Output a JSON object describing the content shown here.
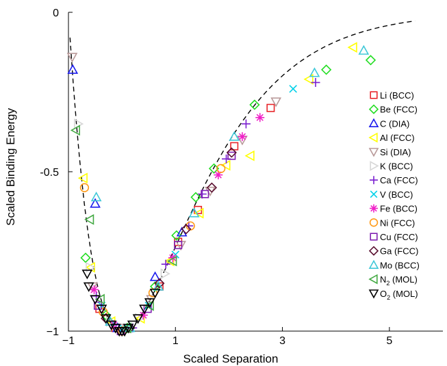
{
  "chart_data": {
    "type": "scatter",
    "xlabel": "Scaled Separation",
    "ylabel": "Scaled Binding Energy",
    "xlim": [
      -1,
      6
    ],
    "ylim": [
      -1,
      0
    ],
    "x_ticks": [
      {
        "value": -1,
        "label": "−1"
      },
      {
        "value": 1,
        "label": "1"
      },
      {
        "value": 3,
        "label": "3"
      },
      {
        "value": 5,
        "label": "5"
      }
    ],
    "y_ticks": [
      {
        "value": 0,
        "label": "0"
      },
      {
        "value": -0.5,
        "label": "-0.5"
      },
      {
        "value": -1,
        "label": "−1"
      }
    ],
    "grid": false,
    "legend_position": "right",
    "curve": {
      "style": "dashed",
      "color": "#000000",
      "description": "universal binding energy relation E = -(1 + a) exp(-a)"
    },
    "series": [
      {
        "name": "Li (BCC)",
        "label": "Li (BCC)",
        "marker": "square",
        "color": "#e8262b",
        "x": [
          -0.42,
          -0.12,
          0.7,
          1.05,
          1.42,
          2.1,
          2.78
        ],
        "y": [
          -0.93,
          -0.99,
          -0.86,
          -0.72,
          -0.62,
          -0.42,
          -0.3
        ]
      },
      {
        "name": "Be (FCC)",
        "label": "Be (FCC)",
        "marker": "diamond",
        "color": "#22dd22",
        "x": [
          -0.68,
          -0.3,
          0.1,
          0.62,
          1.02,
          1.38,
          1.72,
          2.48,
          3.82,
          4.65
        ],
        "y": [
          -0.77,
          -0.95,
          -0.99,
          -0.86,
          -0.7,
          -0.58,
          -0.49,
          -0.29,
          -0.18,
          -0.15
        ]
      },
      {
        "name": "C (DIA)",
        "label": "C (DIA)",
        "marker": "triangle-up",
        "color": "#1a1aee",
        "x": [
          -0.92,
          -0.5,
          -0.08,
          0.62,
          1.12
        ],
        "y": [
          -0.18,
          -0.6,
          -0.99,
          -0.83,
          -0.69
        ]
      },
      {
        "name": "Al (FCC)",
        "label": "Al (FCC)",
        "marker": "triangle-left",
        "color": "#ffff00",
        "x": [
          -0.72,
          -0.58,
          -0.2,
          0.35,
          0.9,
          1.45,
          1.95,
          2.4,
          3.5,
          4.32
        ],
        "y": [
          -0.52,
          -0.8,
          -0.97,
          -0.96,
          -0.78,
          -0.63,
          -0.48,
          -0.45,
          -0.21,
          -0.11
        ]
      },
      {
        "name": "Si (DIA)",
        "label": "Si (DIA)",
        "marker": "triangle-down",
        "color": "#b99a9a",
        "x": [
          -0.93,
          -0.55,
          -0.05,
          0.55,
          1.1,
          1.65,
          2.25,
          2.88
        ],
        "y": [
          -0.14,
          -0.86,
          -0.99,
          -0.9,
          -0.73,
          -0.56,
          -0.4,
          -0.28
        ]
      },
      {
        "name": "K (BCC)",
        "label": "K (BCC)",
        "marker": "triangle-right",
        "color": "#d7d7d7",
        "x": [
          -0.82,
          -0.6,
          -0.22,
          0.32,
          0.8
        ],
        "y": [
          -0.35,
          -0.8,
          -0.97,
          -0.96,
          -0.82
        ]
      },
      {
        "name": "Ca (FCC)",
        "label": "Ca (FCC)",
        "marker": "plus",
        "color": "#7a1fd0",
        "x": [
          -0.48,
          0.2,
          0.82,
          1.25,
          1.5,
          1.95,
          2.32,
          3.62
        ],
        "y": [
          -0.89,
          -0.99,
          -0.79,
          -0.67,
          -0.57,
          -0.46,
          -0.35,
          -0.22
        ]
      },
      {
        "name": "V (BCC)",
        "label": "V (BCC)",
        "marker": "cross",
        "color": "#00d0e8",
        "x": [
          -0.38,
          0.02,
          0.5,
          1.0,
          3.2
        ],
        "y": [
          -0.92,
          -0.99,
          -0.92,
          -0.76,
          -0.24
        ]
      },
      {
        "name": "Fe (BCC)",
        "label": "Fe (BCC)",
        "marker": "asterisk",
        "color": "#f020c8",
        "x": [
          -0.52,
          -0.15,
          0.4,
          0.95,
          1.8,
          2.25,
          2.58
        ],
        "y": [
          -0.87,
          -0.98,
          -0.95,
          -0.77,
          -0.51,
          -0.39,
          -0.33
        ]
      },
      {
        "name": "Ni (FCC)",
        "label": "Ni (FCC)",
        "marker": "circle",
        "color": "#ff9a18",
        "x": [
          -0.7,
          -0.35,
          0.0,
          0.58,
          1.28,
          1.85
        ],
        "y": [
          -0.55,
          -0.94,
          -1.0,
          -0.88,
          -0.67,
          -0.49
        ]
      },
      {
        "name": "Cu (FCC)",
        "label": "Cu (FCC)",
        "marker": "square",
        "color": "#8020b0",
        "x": [
          -0.45,
          -0.02,
          0.48,
          1.05,
          1.55,
          2.05
        ],
        "y": [
          -0.92,
          -1.0,
          -0.93,
          -0.73,
          -0.57,
          -0.45
        ]
      },
      {
        "name": "Ga (FCC)",
        "label": "Ga (FCC)",
        "marker": "diamond",
        "color": "#5a1030",
        "x": [
          -0.3,
          0.15,
          0.7,
          1.2,
          1.68,
          2.05
        ],
        "y": [
          -0.96,
          -0.99,
          -0.85,
          -0.68,
          -0.55,
          -0.44
        ]
      },
      {
        "name": "Mo (BCC)",
        "label": "Mo (BCC)",
        "marker": "triangle-up",
        "color": "#40c8d8",
        "x": [
          -0.48,
          -0.22,
          0.15,
          0.68,
          1.35,
          2.1,
          3.6,
          4.52
        ],
        "y": [
          -0.58,
          -0.97,
          -0.99,
          -0.86,
          -0.63,
          -0.39,
          -0.19,
          -0.12
        ]
      },
      {
        "name": "N2 (MOL)",
        "label": "N",
        "label_sub": "2",
        "label_tail": " (MOL)",
        "marker": "triangle-left",
        "color": "#44aa44",
        "x": [
          -0.86,
          -0.6,
          -0.4,
          0.1,
          0.52,
          0.95
        ],
        "y": [
          -0.37,
          -0.65,
          -0.9,
          -0.99,
          -0.92,
          -0.78
        ]
      },
      {
        "name": "O2 (MOL)",
        "label": "O",
        "label_sub": "2",
        "label_tail": " (MOL)",
        "marker": "triangle-down",
        "color": "#000000",
        "x": [
          -0.65,
          -0.62,
          -0.5,
          -0.38,
          -0.3,
          -0.2,
          -0.12,
          -0.05,
          0.0,
          0.05,
          0.12,
          0.2,
          0.3,
          0.42,
          0.52,
          0.62
        ],
        "y": [
          -0.82,
          -0.86,
          -0.9,
          -0.93,
          -0.96,
          -0.98,
          -0.99,
          -1.0,
          -1.0,
          -1.0,
          -0.99,
          -0.98,
          -0.96,
          -0.93,
          -0.91,
          -0.88
        ]
      }
    ]
  }
}
